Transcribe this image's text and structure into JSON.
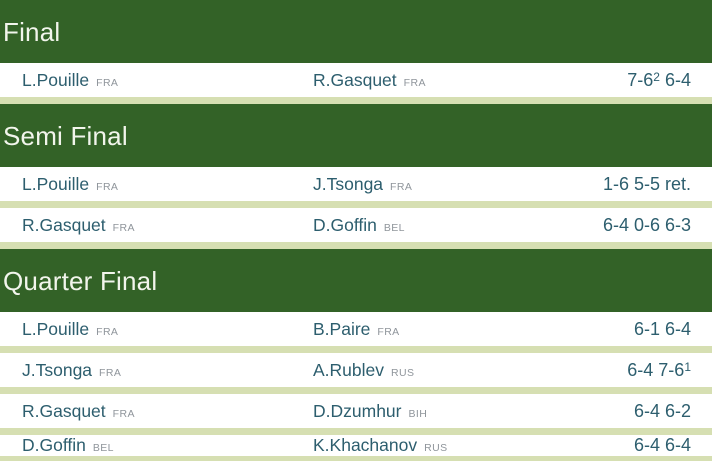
{
  "colors": {
    "header_bg": "#336227",
    "header_text": "#f2f5ec",
    "row_bg": "#ffffff",
    "separator": "#d6dfb2",
    "name_text": "#2d5e6e",
    "country_text": "#8f959b"
  },
  "sections": [
    {
      "title": "Final",
      "matches": [
        {
          "p1": "L.Pouille",
          "p1_country": "FRA",
          "p2": "R.Gasquet",
          "p2_country": "FRA",
          "score": [
            {
              "text": "7-6"
            },
            {
              "text": "2",
              "sup": true
            },
            {
              "text": " 6-4"
            }
          ]
        }
      ]
    },
    {
      "title": "Semi Final",
      "matches": [
        {
          "p1": "L.Pouille",
          "p1_country": "FRA",
          "p2": "J.Tsonga",
          "p2_country": "FRA",
          "score": [
            {
              "text": "1-6 5-5 ret."
            }
          ]
        },
        {
          "p1": "R.Gasquet",
          "p1_country": "FRA",
          "p2": "D.Goffin",
          "p2_country": "BEL",
          "score": [
            {
              "text": "6-4 0-6 6-3"
            }
          ]
        }
      ]
    },
    {
      "title": "Quarter Final",
      "matches": [
        {
          "p1": "L.Pouille",
          "p1_country": "FRA",
          "p2": "B.Paire",
          "p2_country": "FRA",
          "score": [
            {
              "text": "6-1 6-4"
            }
          ]
        },
        {
          "p1": "J.Tsonga",
          "p1_country": "FRA",
          "p2": "A.Rublev",
          "p2_country": "RUS",
          "score": [
            {
              "text": "6-4 7-6"
            },
            {
              "text": "1",
              "sup": true
            }
          ]
        },
        {
          "p1": "R.Gasquet",
          "p1_country": "FRA",
          "p2": "D.Dzumhur",
          "p2_country": "BIH",
          "score": [
            {
              "text": "6-4 6-2"
            }
          ]
        },
        {
          "p1": "D.Goffin",
          "p1_country": "BEL",
          "p2": "K.Khachanov",
          "p2_country": "RUS",
          "score": [
            {
              "text": "6-4 6-4"
            }
          ]
        }
      ]
    }
  ]
}
